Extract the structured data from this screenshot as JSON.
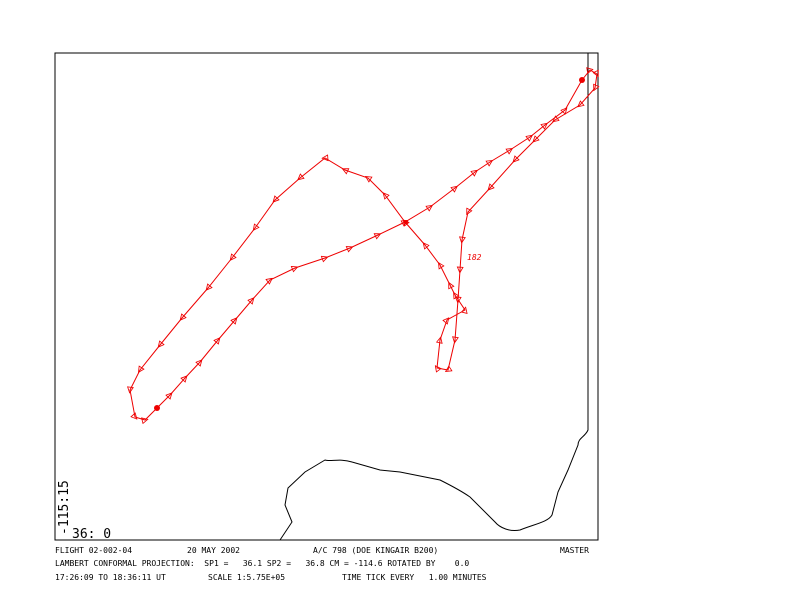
{
  "map": {
    "lon_label": "-115:15",
    "lat_label": "36: 0",
    "track_label": "182"
  },
  "footer": {
    "flight": "FLIGHT 02-002-04",
    "date": "20 MAY 2002",
    "aircraft": "A/C 798 (DOE KINGAIR B200)",
    "master": "MASTER",
    "projection": "LAMBERT CONFORMAL PROJECTION:  SP1 =   36.1 SP2 =   36.8 CM = -114.6 ROTATED BY    0.0",
    "time_range": "17:26:09 TO 18:36:11 UT",
    "scale": "SCALE 1:5.75E+05",
    "time_tick": "TIME TICK EVERY   1.00 MINUTES"
  }
}
